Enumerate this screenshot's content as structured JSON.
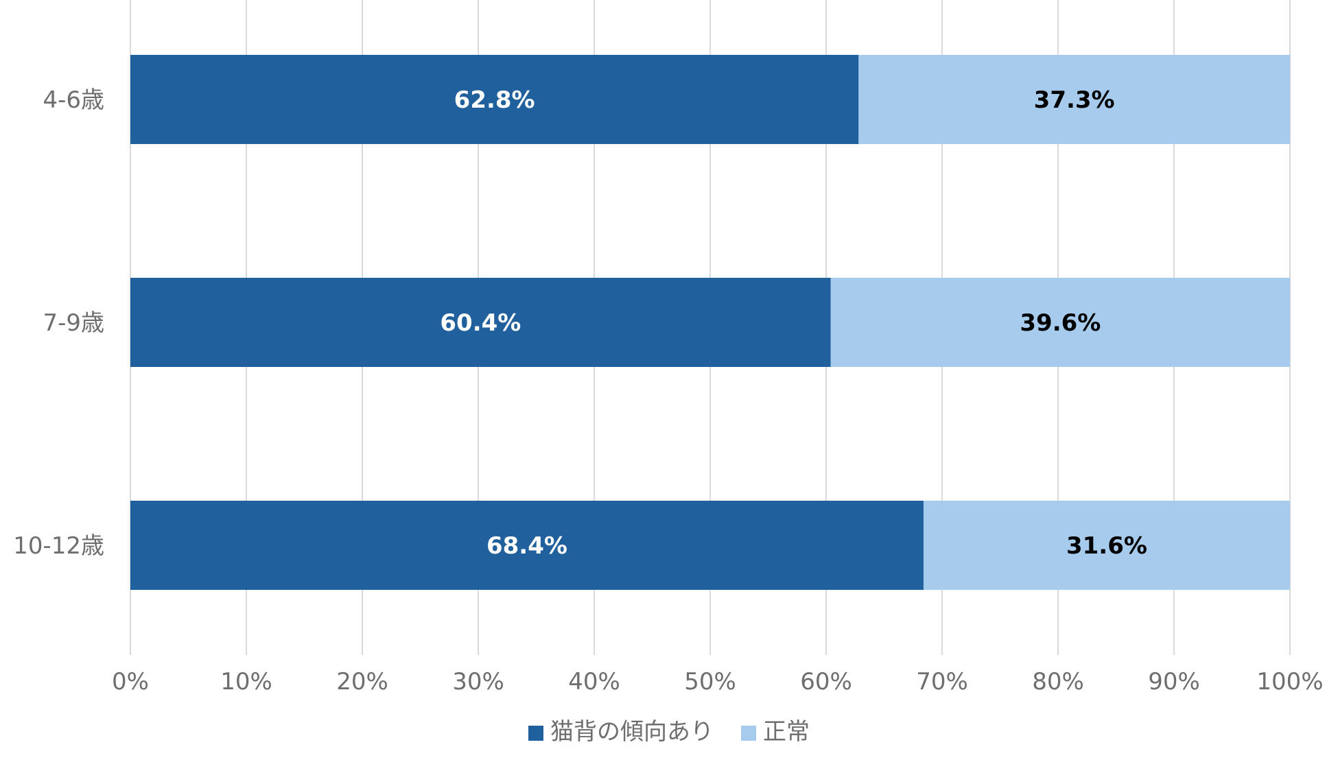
{
  "chart_data": {
    "type": "bar",
    "orientation": "horizontal",
    "stacked": "100%",
    "categories": [
      "4-6歳",
      "7-9歳",
      "10-12歳"
    ],
    "series": [
      {
        "name": "猫背の傾向あり",
        "values": [
          62.8,
          60.4,
          68.4
        ],
        "labels": [
          "62.8%",
          "60.4%",
          "68.4%"
        ],
        "color": "#20609c",
        "label_color": "#ffffff"
      },
      {
        "name": "正常",
        "values": [
          37.3,
          39.6,
          31.6
        ],
        "labels": [
          "37.3%",
          "39.6%",
          "31.6%"
        ],
        "color": "#a7cbec",
        "label_color": "#000000"
      }
    ],
    "xlim": [
      0,
      100
    ],
    "xticks": [
      "0%",
      "10%",
      "20%",
      "30%",
      "40%",
      "50%",
      "60%",
      "70%",
      "80%",
      "90%",
      "100%"
    ],
    "grid": "vertical",
    "legend": "bottom",
    "gridline_color": "#d9d9d9",
    "text_color": "#6e6e6e"
  }
}
